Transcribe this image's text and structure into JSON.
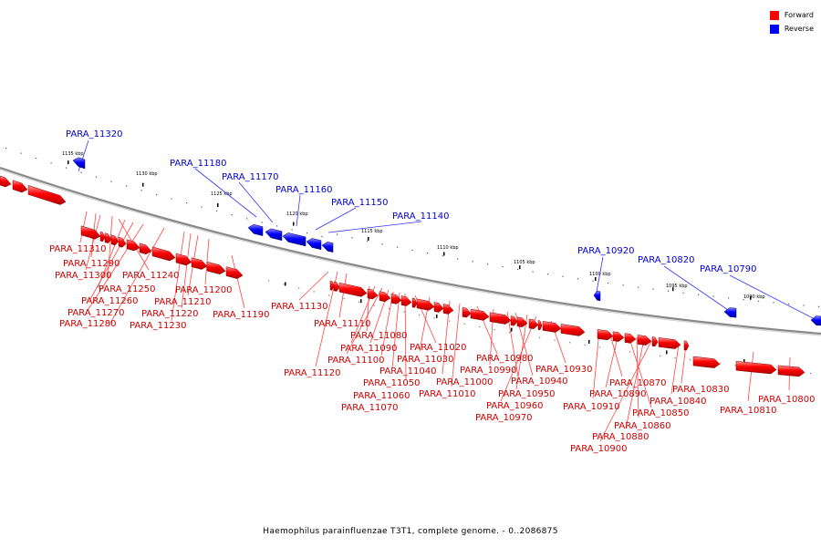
{
  "colors": {
    "forward": "#ff0000",
    "reverse": "#0000ff",
    "backbone": "#808080"
  },
  "legend": {
    "forward": "Forward",
    "reverse": "Reverse"
  },
  "caption": "Haemophilus parainfluenzae T3T1, complete genome. - 0..2086875",
  "ticks": [
    "1135 kbp",
    "1130 kbp",
    "1125 kbp",
    "1120 kbp",
    "1115 kbp",
    "1110 kbp",
    "1105 kbp",
    "1100 kbp",
    "1095 kbp",
    "1090 kbp"
  ],
  "genes_forward": [
    "PARA_11310",
    "PARA_11290",
    "PARA_11300",
    "PARA_11240",
    "PARA_11250",
    "PARA_11260",
    "PARA_11270",
    "PARA_11280",
    "PARA_11200",
    "PARA_11210",
    "PARA_11220",
    "PARA_11230",
    "PARA_11190",
    "PARA_11130",
    "PARA_11110",
    "PARA_11080",
    "PARA_11090",
    "PARA_11100",
    "PARA_11120",
    "PARA_11040",
    "PARA_11050",
    "PARA_11060",
    "PARA_11070",
    "PARA_11020",
    "PARA_11030",
    "PARA_11000",
    "PARA_11010",
    "PARA_10980",
    "PARA_10990",
    "PARA_10940",
    "PARA_10950",
    "PARA_10960",
    "PARA_10970",
    "PARA_10930",
    "PARA_10910",
    "PARA_10870",
    "PARA_10890",
    "PARA_10850",
    "PARA_10860",
    "PARA_10880",
    "PARA_10900",
    "PARA_10830",
    "PARA_10840",
    "PARA_10810",
    "PARA_10800"
  ],
  "genes_reverse": [
    "PARA_11320",
    "PARA_11180",
    "PARA_11170",
    "PARA_11160",
    "PARA_11150",
    "PARA_11140",
    "PARA_10920",
    "PARA_10820",
    "PARA_10790"
  ]
}
